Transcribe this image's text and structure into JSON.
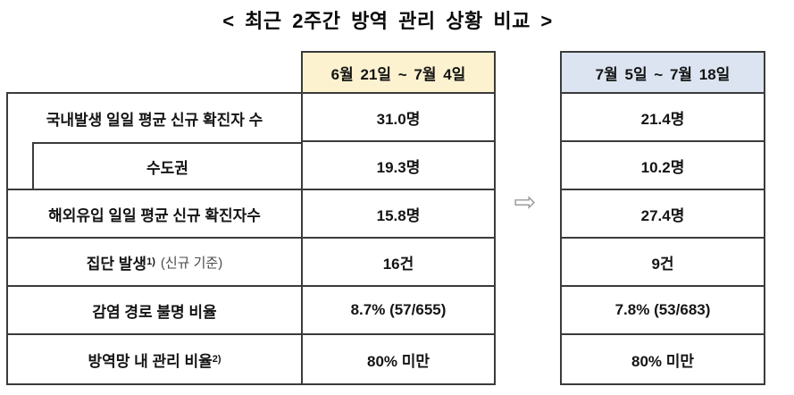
{
  "page": {
    "title": "< 최근 2주간 방역 관리 상황 비교 >"
  },
  "table": {
    "col_headers": [
      {
        "label": "6월 21일 ~ 7월 4일"
      },
      {
        "label": "7월 5일 ~ 7월 18일"
      }
    ],
    "arrow_icon": "⇨",
    "rows": [
      {
        "label": "국내발생 일일 평균 신규 확진자 수",
        "sup": "",
        "note": "",
        "period1": "31.0명",
        "period2": "21.4명"
      },
      {
        "label": "수도권",
        "sup": "",
        "note": "",
        "period1": "19.3명",
        "period2": "10.2명"
      },
      {
        "label": "해외유입 일일 평균 신규 확진자수",
        "sup": "",
        "note": "",
        "period1": "15.8명",
        "period2": "27.4명"
      },
      {
        "label": "집단 발생",
        "sup": "1)",
        "note": "(신규 기준)",
        "period1": "16건",
        "period2": "9건"
      },
      {
        "label": "감염 경로 불명 비율",
        "sup": "",
        "note": "",
        "period1": "8.7% (57/655)",
        "period2": "7.8% (53/683)"
      },
      {
        "label": "방역망 내 관리 비율",
        "sup": "2)",
        "note": "",
        "period1": "80% 미만",
        "period2": "80% 미만"
      }
    ]
  },
  "colors": {
    "header1_bg": "#FCF2CF",
    "header2_bg": "#DBE4F0",
    "border": "#3B3B3B",
    "arrow": "#9B9B9B"
  }
}
